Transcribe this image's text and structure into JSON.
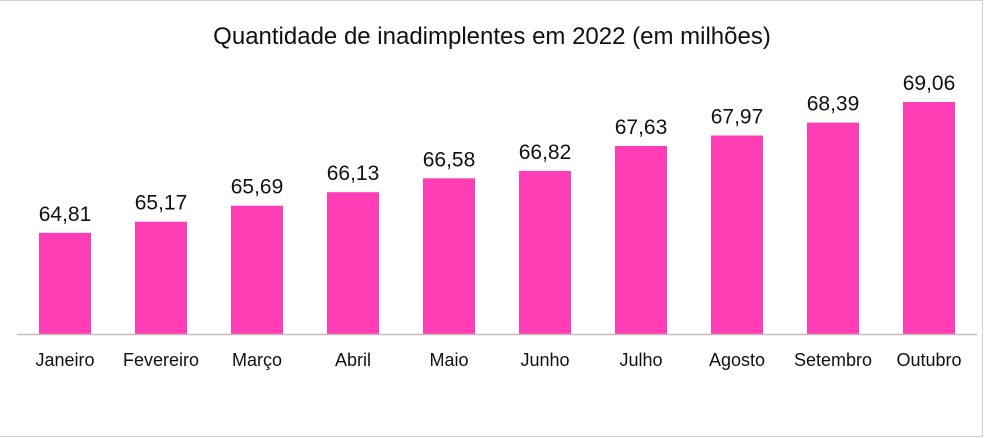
{
  "chart_data": {
    "type": "bar",
    "title": "Quantidade de inadimplentes em 2022 (em milhões)",
    "categories": [
      "Janeiro",
      "Fevereiro",
      "Março",
      "Abril",
      "Maio",
      "Junho",
      "Julho",
      "Agosto",
      "Setembro",
      "Outubro"
    ],
    "values": [
      64.81,
      65.17,
      65.69,
      66.13,
      66.58,
      66.82,
      67.63,
      67.97,
      68.39,
      69.06
    ],
    "data_labels": [
      "64,81",
      "65,17",
      "65,69",
      "66,13",
      "66,58",
      "66,82",
      "67,63",
      "67,97",
      "68,39",
      "69,06"
    ],
    "xlabel": "",
    "ylabel": "",
    "ylim": [
      61.52,
      69.06
    ],
    "grid": false,
    "legend": "none",
    "bar_color": "#ff3db4",
    "axis_color": "#bfbfbf"
  }
}
